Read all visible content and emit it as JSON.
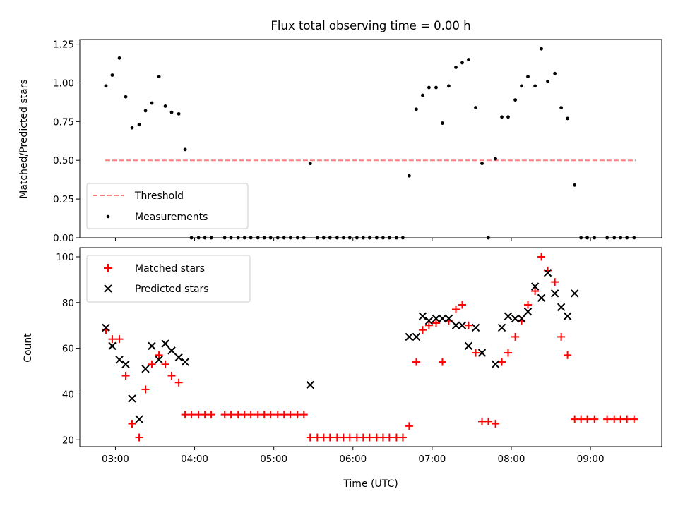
{
  "chart_data": [
    {
      "type": "scatter",
      "title": "Flux total observing time = 0.00 h",
      "ylabel": "Matched/Predicted stars",
      "xlabel": "",
      "xlim": [
        2.55,
        9.9
      ],
      "ylim": [
        0,
        1.28
      ],
      "yticks": [
        0.0,
        0.25,
        0.5,
        0.75,
        1.0,
        1.25
      ],
      "ytick_labels": [
        "0.00",
        "0.25",
        "0.50",
        "0.75",
        "1.00",
        "1.25"
      ],
      "xticks": [
        3,
        4,
        5,
        6,
        7,
        8,
        9
      ],
      "legend_position": "lower-left",
      "threshold": {
        "name": "Threshold",
        "y": 0.5,
        "x_range": [
          2.87,
          9.57
        ],
        "color": "#ff7f7f",
        "style": "dashed"
      },
      "series": [
        {
          "name": "Measurements",
          "color": "#000000",
          "marker": "dot",
          "x": [
            2.88,
            2.96,
            3.05,
            3.13,
            3.21,
            3.3,
            3.38,
            3.46,
            3.55,
            3.63,
            3.71,
            3.8,
            3.88,
            3.96,
            4.05,
            4.13,
            4.21,
            4.38,
            4.46,
            4.55,
            4.63,
            4.71,
            4.8,
            4.88,
            4.96,
            5.05,
            5.13,
            5.21,
            5.3,
            5.38,
            5.46,
            5.55,
            5.63,
            5.71,
            5.8,
            5.88,
            5.96,
            6.05,
            6.13,
            6.21,
            6.3,
            6.38,
            6.46,
            6.55,
            6.63,
            6.71,
            6.8,
            6.88,
            6.96,
            7.05,
            7.13,
            7.21,
            7.3,
            7.38,
            7.46,
            7.55,
            7.63,
            7.71,
            7.8,
            7.88,
            7.96,
            8.05,
            8.13,
            8.21,
            8.3,
            8.38,
            8.46,
            8.55,
            8.63,
            8.71,
            8.8,
            8.88,
            8.96,
            9.05,
            9.21,
            9.3,
            9.38,
            9.46,
            9.55
          ],
          "y": [
            0.98,
            1.05,
            1.16,
            0.91,
            0.71,
            0.73,
            0.82,
            0.87,
            1.04,
            0.85,
            0.81,
            0.8,
            0.57,
            0,
            0,
            0,
            0,
            0,
            0,
            0,
            0,
            0,
            0,
            0,
            0,
            0,
            0,
            0,
            0,
            0,
            0.48,
            0,
            0,
            0,
            0,
            0,
            0,
            0,
            0,
            0,
            0,
            0,
            0,
            0,
            0,
            0.4,
            0.83,
            0.92,
            0.97,
            0.97,
            0.74,
            0.98,
            1.1,
            1.13,
            1.15,
            0.84,
            0.48,
            0,
            0.51,
            0.78,
            0.78,
            0.89,
            0.98,
            1.04,
            0.98,
            1.22,
            1.01,
            1.06,
            0.84,
            0.77,
            0.34,
            0,
            0,
            0,
            0,
            0,
            0,
            0,
            0
          ]
        }
      ]
    },
    {
      "type": "scatter",
      "title": "",
      "ylabel": "Count",
      "xlabel": "Time (UTC)",
      "xlim": [
        2.55,
        9.9
      ],
      "ylim": [
        17,
        104
      ],
      "yticks": [
        20,
        40,
        60,
        80,
        100
      ],
      "ytick_labels": [
        "20",
        "40",
        "60",
        "80",
        "100"
      ],
      "xticks": [
        3,
        4,
        5,
        6,
        7,
        8,
        9
      ],
      "xtick_labels": [
        "03:00",
        "04:00",
        "05:00",
        "06:00",
        "07:00",
        "08:00",
        "09:00"
      ],
      "legend_position": "upper-left",
      "series": [
        {
          "name": "Matched stars",
          "color": "#ff0000",
          "marker": "plus",
          "x": [
            2.88,
            2.96,
            3.05,
            3.13,
            3.21,
            3.3,
            3.38,
            3.46,
            3.55,
            3.63,
            3.71,
            3.8,
            3.88,
            3.96,
            4.05,
            4.13,
            4.21,
            4.38,
            4.46,
            4.55,
            4.63,
            4.71,
            4.8,
            4.88,
            4.96,
            5.05,
            5.13,
            5.21,
            5.3,
            5.38,
            5.46,
            5.55,
            5.63,
            5.71,
            5.8,
            5.88,
            5.96,
            6.05,
            6.13,
            6.21,
            6.3,
            6.38,
            6.46,
            6.55,
            6.63,
            6.71,
            6.8,
            6.88,
            6.96,
            7.05,
            7.13,
            7.21,
            7.3,
            7.38,
            7.46,
            7.55,
            7.63,
            7.71,
            7.8,
            7.88,
            7.96,
            8.05,
            8.13,
            8.21,
            8.3,
            8.38,
            8.46,
            8.55,
            8.63,
            8.71,
            8.8,
            8.88,
            8.96,
            9.05,
            9.21,
            9.3,
            9.38,
            9.46,
            9.55
          ],
          "y": [
            68,
            64,
            64,
            48,
            27,
            21,
            42,
            53,
            57,
            53,
            48,
            45,
            31,
            31,
            31,
            31,
            31,
            31,
            31,
            31,
            31,
            31,
            31,
            31,
            31,
            31,
            31,
            31,
            31,
            31,
            21,
            21,
            21,
            21,
            21,
            21,
            21,
            21,
            21,
            21,
            21,
            21,
            21,
            21,
            21,
            26,
            54,
            68,
            70,
            71,
            54,
            72,
            77,
            79,
            70,
            58,
            28,
            28,
            27,
            54,
            58,
            65,
            72,
            79,
            85,
            100,
            94,
            89,
            65,
            57,
            29,
            29,
            29,
            29,
            29,
            29,
            29,
            29,
            29
          ]
        },
        {
          "name": "Predicted stars",
          "color": "#000000",
          "marker": "cross",
          "x": [
            2.88,
            2.96,
            3.05,
            3.13,
            3.21,
            3.3,
            3.38,
            3.46,
            3.55,
            3.63,
            3.71,
            3.8,
            3.88,
            5.46,
            6.71,
            6.8,
            6.88,
            6.96,
            7.05,
            7.13,
            7.21,
            7.3,
            7.38,
            7.46,
            7.55,
            7.63,
            7.8,
            7.88,
            7.96,
            8.05,
            8.13,
            8.21,
            8.3,
            8.38,
            8.46,
            8.55,
            8.63,
            8.71,
            8.8
          ],
          "y": [
            69,
            61,
            55,
            53,
            38,
            29,
            51,
            61,
            55,
            62,
            59,
            56,
            54,
            44,
            65,
            65,
            74,
            72,
            73,
            73,
            73,
            70,
            70,
            61,
            69,
            58,
            53,
            69,
            74,
            73,
            73,
            76,
            87,
            82,
            93,
            84,
            78,
            74,
            84
          ]
        }
      ]
    }
  ]
}
